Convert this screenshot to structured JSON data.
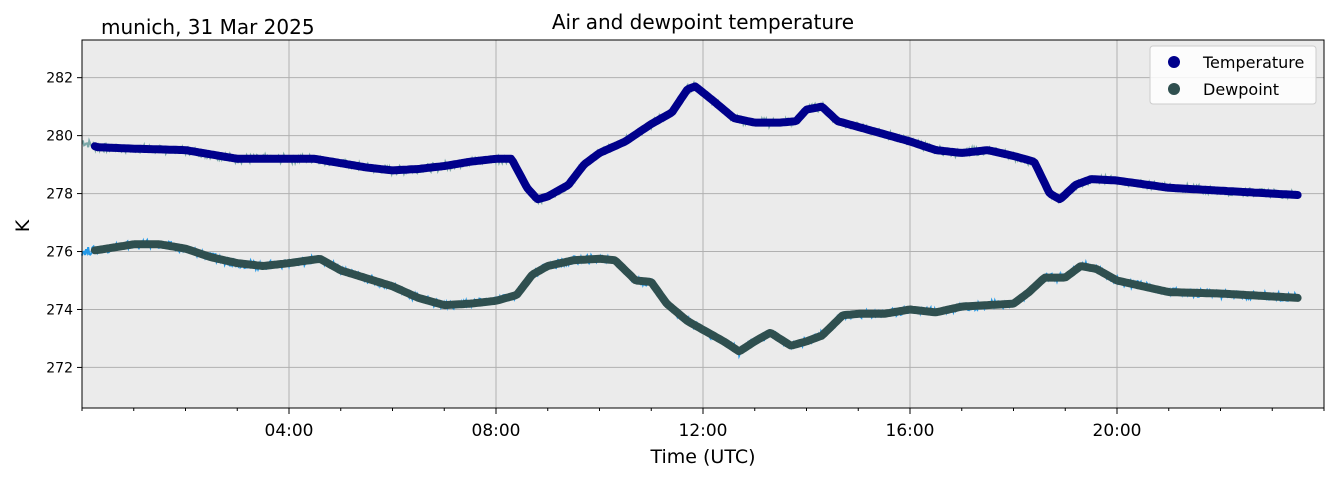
{
  "header": {
    "location_date": "munich, 31 Mar 2025",
    "title": "Air and dewpoint temperature"
  },
  "chart_data": {
    "type": "line",
    "title": "Air and dewpoint temperature",
    "xlabel": "Time (UTC)",
    "ylabel": "K",
    "xlim": [
      0,
      24
    ],
    "ylim": [
      270.6,
      283.3
    ],
    "x_unit": "hours UTC",
    "x_ticks": [
      {
        "value": 4,
        "label": "04:00"
      },
      {
        "value": 8,
        "label": "08:00"
      },
      {
        "value": 12,
        "label": "12:00"
      },
      {
        "value": 16,
        "label": "16:00"
      },
      {
        "value": 20,
        "label": "20:00"
      }
    ],
    "y_ticks": [
      272,
      274,
      276,
      278,
      280,
      282
    ],
    "grid": true,
    "legend_position": "top-right",
    "background": "#ebebeb",
    "series": [
      {
        "name": "Temperature",
        "color": "#00008b",
        "raw_color": "#7aa8a8",
        "x": [
          0.0,
          0.3,
          1.0,
          2.0,
          3.0,
          4.0,
          4.5,
          5.5,
          6.0,
          6.5,
          7.0,
          7.5,
          8.0,
          8.3,
          8.6,
          8.8,
          9.0,
          9.4,
          9.7,
          10.0,
          10.5,
          11.0,
          11.4,
          11.7,
          11.85,
          12.2,
          12.6,
          13.0,
          13.5,
          13.8,
          14.0,
          14.3,
          14.6,
          15.0,
          15.5,
          16.0,
          16.5,
          17.0,
          17.5,
          18.0,
          18.4,
          18.7,
          18.9,
          19.2,
          19.5,
          20.0,
          21.0,
          22.0,
          23.0,
          23.5
        ],
        "values": [
          279.8,
          279.6,
          279.55,
          279.5,
          279.2,
          279.2,
          279.2,
          278.9,
          278.8,
          278.85,
          278.95,
          279.1,
          279.2,
          279.2,
          278.2,
          277.8,
          277.9,
          278.3,
          279.0,
          279.4,
          279.8,
          280.4,
          280.8,
          281.6,
          281.7,
          281.2,
          280.6,
          280.45,
          280.45,
          280.5,
          280.9,
          281.0,
          280.5,
          280.3,
          280.05,
          279.8,
          279.5,
          279.4,
          279.5,
          279.3,
          279.1,
          278.0,
          277.8,
          278.3,
          278.5,
          278.45,
          278.2,
          278.1,
          278.0,
          277.95
        ]
      },
      {
        "name": "Dewpoint",
        "color": "#2f4f4f",
        "raw_color": "#2299e8",
        "x": [
          0.0,
          0.3,
          1.0,
          1.5,
          2.0,
          2.5,
          3.0,
          3.5,
          4.0,
          4.6,
          5.0,
          6.0,
          6.5,
          7.0,
          7.5,
          8.0,
          8.4,
          8.7,
          9.0,
          9.5,
          10.0,
          10.3,
          10.7,
          11.0,
          11.3,
          11.7,
          12.0,
          12.4,
          12.7,
          13.0,
          13.3,
          13.7,
          14.0,
          14.3,
          14.7,
          15.0,
          15.5,
          16.0,
          16.5,
          17.0,
          17.5,
          18.0,
          18.3,
          18.6,
          19.0,
          19.3,
          19.6,
          20.0,
          21.0,
          22.0,
          23.0,
          23.5
        ],
        "values": [
          276.0,
          276.05,
          276.25,
          276.25,
          276.1,
          275.8,
          275.6,
          275.5,
          275.6,
          275.75,
          275.35,
          274.8,
          274.4,
          274.15,
          274.2,
          274.3,
          274.5,
          275.2,
          275.5,
          275.7,
          275.75,
          275.7,
          275.0,
          274.95,
          274.2,
          273.6,
          273.3,
          272.9,
          272.55,
          272.9,
          273.2,
          272.75,
          272.9,
          273.1,
          273.8,
          273.85,
          273.85,
          274.0,
          273.9,
          274.1,
          274.15,
          274.2,
          274.6,
          275.1,
          275.1,
          275.5,
          275.4,
          275.0,
          274.6,
          274.55,
          274.45,
          274.4
        ]
      }
    ]
  }
}
